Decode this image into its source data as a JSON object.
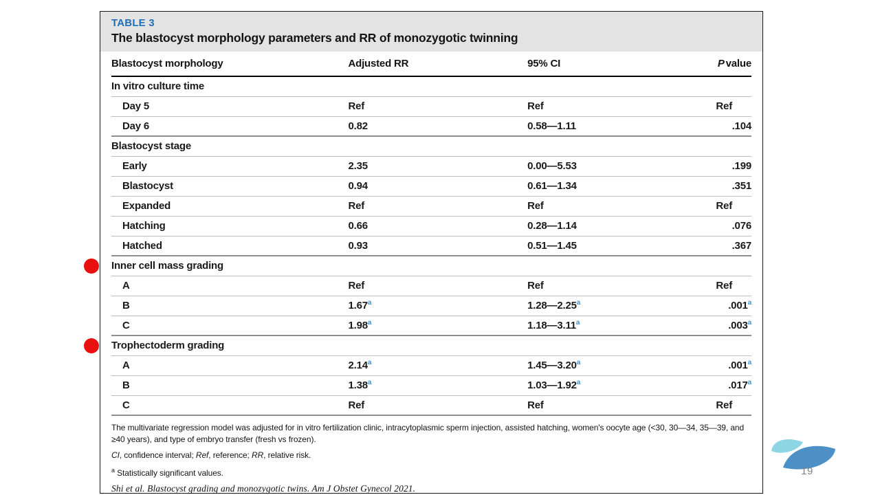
{
  "slide": {
    "page_number": "19"
  },
  "table": {
    "label": "TABLE 3",
    "title": "The blastocyst morphology parameters and RR of monozygotic twinning",
    "columns": {
      "morphology": "Blastocyst morphology",
      "adjusted_rr": "Adjusted RR",
      "ci": "95% CI",
      "p_italic": "P",
      "p_rest": "value"
    },
    "sup_marker": "a",
    "sections": [
      {
        "header": "In vitro culture time",
        "marker": false,
        "rows": [
          {
            "label": "Day 5",
            "rr": "Ref",
            "ci": "Ref",
            "p": "Ref",
            "sig": false
          },
          {
            "label": "Day 6",
            "rr": "0.82",
            "ci": "0.58—1.11",
            "p": ".104",
            "sig": false
          }
        ]
      },
      {
        "header": "Blastocyst stage",
        "marker": false,
        "rows": [
          {
            "label": "Early",
            "rr": "2.35",
            "ci": "0.00—5.53",
            "p": ".199",
            "sig": false
          },
          {
            "label": "Blastocyst",
            "rr": "0.94",
            "ci": "0.61—1.34",
            "p": ".351",
            "sig": false
          },
          {
            "label": "Expanded",
            "rr": "Ref",
            "ci": "Ref",
            "p": "Ref",
            "sig": false
          },
          {
            "label": "Hatching",
            "rr": "0.66",
            "ci": "0.28—1.14",
            "p": ".076",
            "sig": false
          },
          {
            "label": "Hatched",
            "rr": "0.93",
            "ci": "0.51—1.45",
            "p": ".367",
            "sig": false
          }
        ]
      },
      {
        "header": "Inner cell mass grading",
        "marker": true,
        "rows": [
          {
            "label": "A",
            "rr": "Ref",
            "ci": "Ref",
            "p": "Ref",
            "sig": false
          },
          {
            "label": "B",
            "rr": "1.67",
            "ci": "1.28—2.25",
            "p": ".001",
            "sig": true
          },
          {
            "label": "C",
            "rr": "1.98",
            "ci": "1.18—3.11",
            "p": ".003",
            "sig": true
          }
        ]
      },
      {
        "header": "Trophectoderm grading",
        "marker": true,
        "rows": [
          {
            "label": "A",
            "rr": "2.14",
            "ci": "1.45—3.20",
            "p": ".001",
            "sig": true
          },
          {
            "label": "B",
            "rr": "1.38",
            "ci": "1.03—1.92",
            "p": ".017",
            "sig": true
          },
          {
            "label": "C",
            "rr": "Ref",
            "ci": "Ref",
            "p": "Ref",
            "sig": false
          }
        ]
      }
    ],
    "footnotes": {
      "adjustment": "The multivariate regression model was adjusted for in vitro fertilization clinic, intracytoplasmic sperm injection, assisted hatching, women's oocyte age (<30, 30—34, 35—39, and ≥40 years), and type of embryo transfer (fresh vs frozen).",
      "abbreviations": [
        {
          "text": "CI",
          "italic": true
        },
        {
          "text": ", confidence interval; ",
          "italic": false
        },
        {
          "text": "Ref",
          "italic": true
        },
        {
          "text": ", reference; ",
          "italic": false
        },
        {
          "text": "RR",
          "italic": true
        },
        {
          "text": ", relative risk.",
          "italic": false
        }
      ],
      "significance_marker": "a",
      "significance": " Statistically significant values.",
      "citation": "Shi et al. Blastocyst grading and monozygotic twins. Am J Obstet Gynecol 2021."
    }
  },
  "colors": {
    "accent_blue": "#1d70b7",
    "superscript_blue": "#4191c8",
    "marker_red": "#ea0f10",
    "band_gray": "#e3e3e3",
    "logo_light": "#8ed5e4",
    "logo_dark": "#4c90c6",
    "page_number_gray": "#7f7f7f"
  },
  "logo": {
    "name": "two-leaf-logo"
  }
}
